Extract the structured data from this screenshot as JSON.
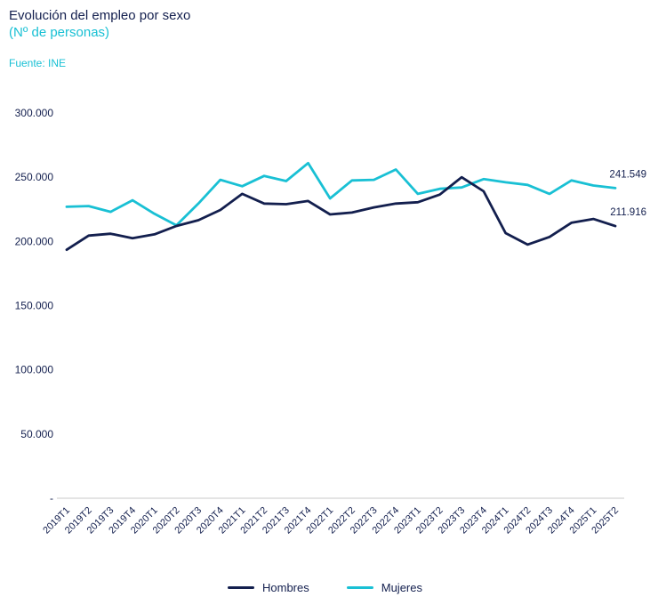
{
  "header": {
    "title": "Evolución del empleo por sexo",
    "subtitle": "(Nº de personas)",
    "source": "Fuente: INE"
  },
  "colors": {
    "hombres": "#131f4e",
    "mujeres": "#19c0d4",
    "axis": "#c9c9c9",
    "text": "#131f4e"
  },
  "chart_data": {
    "type": "line",
    "title": "Evolución del empleo por sexo (Nº de personas)",
    "xlabel": "",
    "ylabel": "",
    "ylim": [
      0,
      300000
    ],
    "grid": false,
    "legend_position": "bottom",
    "categories": [
      "2019T1",
      "2019T2",
      "2019T3",
      "2019T4",
      "2020T1",
      "2020T2",
      "2020T3",
      "2020T4",
      "2021T1",
      "2021T2",
      "2021T3",
      "2021T4",
      "2022T1",
      "2022T2",
      "2022T3",
      "2022T4",
      "2023T1",
      "2023T2",
      "2023T3",
      "2023T4",
      "2024T1",
      "2024T2",
      "2024T3",
      "2024T4",
      "2025T1",
      "2025T2"
    ],
    "series": [
      {
        "name": "Hombres",
        "color_key": "hombres",
        "values": [
          193500,
          204500,
          206000,
          202500,
          205500,
          212000,
          216500,
          224500,
          237000,
          229500,
          229000,
          231500,
          221000,
          222500,
          226500,
          229500,
          230500,
          236500,
          250000,
          239000,
          206500,
          197500,
          203500,
          214500,
          217500,
          211916
        ]
      },
      {
        "name": "Mujeres",
        "color_key": "mujeres",
        "values": [
          227000,
          227500,
          223000,
          232000,
          221500,
          212500,
          229500,
          248000,
          243000,
          251000,
          247000,
          261000,
          233500,
          247500,
          248000,
          256000,
          237000,
          241000,
          242000,
          248500,
          246000,
          244000,
          237000,
          247500,
          243500,
          241549
        ]
      }
    ],
    "y_ticks": [
      {
        "value": 0,
        "label": "-"
      },
      {
        "value": 50000,
        "label": "50.000"
      },
      {
        "value": 100000,
        "label": "100.000"
      },
      {
        "value": 150000,
        "label": "150.000"
      },
      {
        "value": 200000,
        "label": "200.000"
      },
      {
        "value": 250000,
        "label": "250.000"
      },
      {
        "value": 300000,
        "label": "300.000"
      }
    ],
    "end_labels": [
      {
        "series": "Mujeres",
        "value": 241549,
        "text": "241.549"
      },
      {
        "series": "Hombres",
        "value": 211916,
        "text": "211.916"
      }
    ]
  }
}
